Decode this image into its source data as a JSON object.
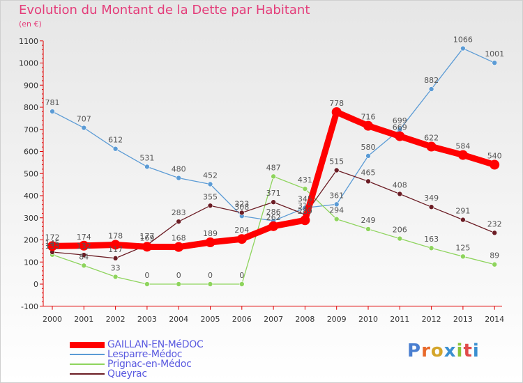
{
  "header": {
    "title": "Evolution du Montant de la Dette par Habitant",
    "subtitle": "(en €)"
  },
  "logo": {
    "text": "Proxiti"
  },
  "chart_data": {
    "type": "line",
    "title": "Evolution du Montant de la Dette par Habitant",
    "subtitle": "(en €)",
    "xlabel": "",
    "ylabel": "",
    "categories": [
      "2000",
      "2001",
      "2002",
      "2003",
      "2004",
      "2005",
      "2006",
      "2007",
      "2008",
      "2009",
      "2010",
      "2011",
      "2012",
      "2013",
      "2014"
    ],
    "ylim": [
      -100,
      1100
    ],
    "yticks": [
      -100,
      0,
      100,
      200,
      300,
      400,
      500,
      600,
      700,
      800,
      900,
      1000,
      1100
    ],
    "grid": false,
    "legend": "bottom-left",
    "series": [
      {
        "name": "GAILLAN-EN-MéDOC",
        "color": "#ff0000",
        "values": [
          172,
          174,
          178,
          169,
          168,
          189,
          204,
          262,
          289,
          778,
          716,
          669,
          622,
          584,
          540
        ]
      },
      {
        "name": "Lesparre-Médoc",
        "color": "#5b9bd5",
        "values": [
          781,
          707,
          612,
          531,
          480,
          452,
          308,
          286,
          345,
          361,
          580,
          699,
          882,
          1066,
          1001
        ]
      },
      {
        "name": "Prignac-en-Médoc",
        "color": "#8ed45d",
        "values": [
          133,
          84,
          33,
          0,
          0,
          0,
          0,
          487,
          431,
          294,
          249,
          206,
          163,
          125,
          89
        ]
      },
      {
        "name": "Queyrac",
        "color": "#6b1c24",
        "values": [
          145,
          132,
          117,
          177,
          283,
          355,
          323,
          371,
          315,
          515,
          465,
          408,
          349,
          291,
          232
        ]
      }
    ]
  }
}
